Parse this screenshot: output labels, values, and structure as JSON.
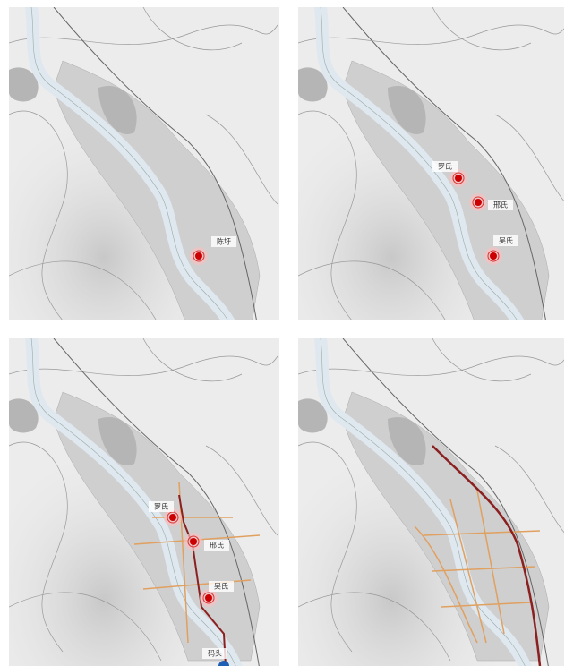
{
  "panels": [
    {
      "labels": [
        "陈圩"
      ]
    },
    {
      "labels": [
        "罗氏",
        "邢氏",
        "吴氏"
      ]
    },
    {
      "labels": [
        "罗氏",
        "邢氏",
        "吴氏",
        "码头"
      ]
    },
    {
      "labels": []
    }
  ]
}
